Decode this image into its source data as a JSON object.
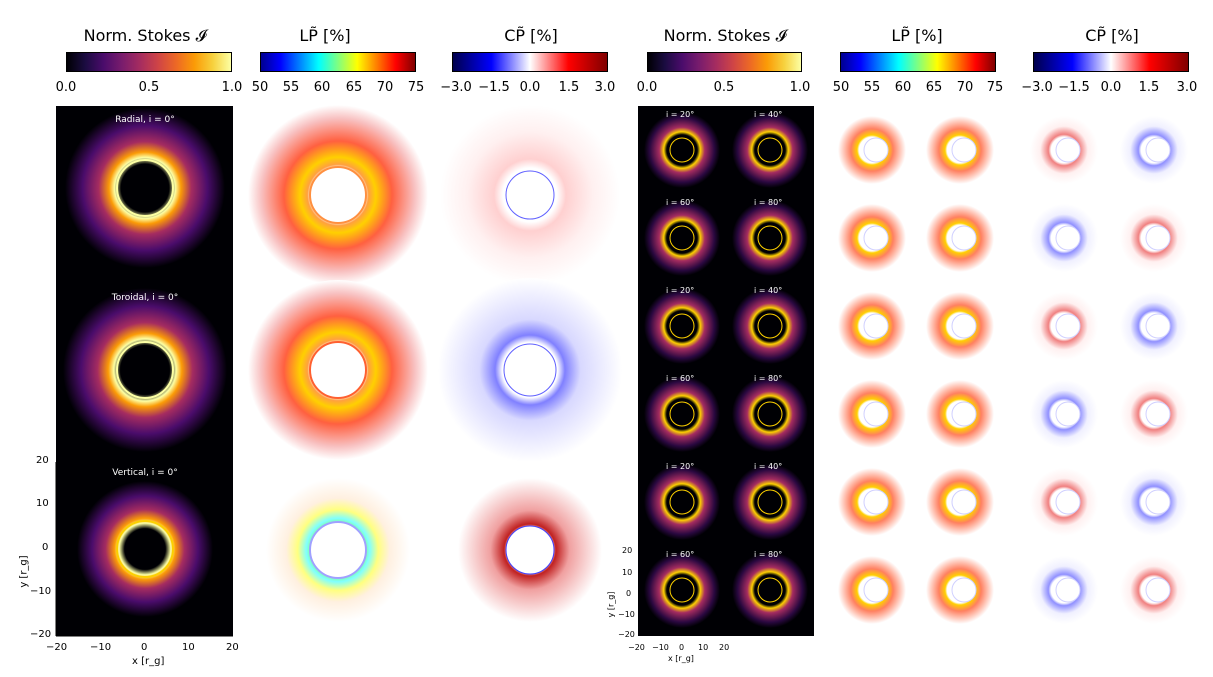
{
  "colorbars": {
    "left": [
      {
        "title": "Norm. Stokes 𝓘",
        "ticks": [
          "0.0",
          "0.5",
          "1.0"
        ]
      },
      {
        "title": "LP̃ [%]",
        "ticks": [
          "50",
          "55",
          "60",
          "65",
          "70",
          "75"
        ]
      },
      {
        "title": "CP̃ [%]",
        "ticks": [
          "−3.0",
          "−1.5",
          "0.0",
          "1.5",
          "3.0"
        ]
      }
    ],
    "right": [
      {
        "title": "Norm. Stokes 𝓘",
        "ticks": [
          "0.0",
          "0.5",
          "1.0"
        ]
      },
      {
        "title": "LP̃ [%]",
        "ticks": [
          "50",
          "55",
          "60",
          "65",
          "70",
          "75"
        ]
      },
      {
        "title": "CP̃ [%]",
        "ticks": [
          "−3.0",
          "−1.5",
          "0.0",
          "1.5",
          "3.0"
        ]
      }
    ]
  },
  "left_panels": {
    "row_labels": [
      "Radial, i = 0°",
      "Toroidal, i = 0°",
      "Vertical, i = 0°"
    ],
    "y_ticks": [
      "20",
      "10",
      "0",
      "−10",
      "−20"
    ],
    "x_ticks": [
      "−20",
      "−10",
      "0",
      "10",
      "20"
    ],
    "x_label": "x [r_g]",
    "y_label": "y [r_g]"
  },
  "right_panels": {
    "inclination_labels": [
      "i = 20°",
      "i = 40°",
      "i = 60°",
      "i = 80°"
    ],
    "y_ticks": [
      "20",
      "10",
      "0",
      "−10",
      "−20"
    ],
    "x_ticks": [
      "−20",
      "−10",
      "0",
      "10",
      "20"
    ],
    "x_label": "x [r_g]",
    "y_label": "y [r_g]"
  },
  "colors": {
    "inferno_dark": "#000004",
    "inferno_bright": "#fcffa4",
    "cp_negative": "#0000cc",
    "cp_positive": "#cc0000",
    "background": "#ffffff"
  }
}
